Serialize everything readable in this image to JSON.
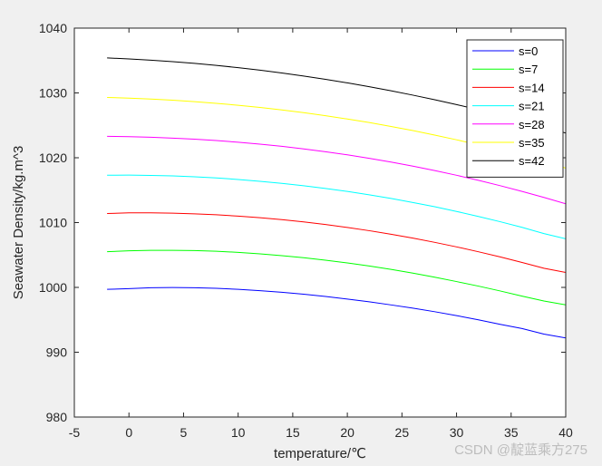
{
  "watermark": "CSDN @靛蓝乘方275",
  "chart_data": {
    "type": "line",
    "xlabel": "temperature/℃",
    "ylabel": "Seawater Density/kg.m^3",
    "xlim": [
      -5,
      40
    ],
    "ylim": [
      980,
      1040
    ],
    "xticks": [
      -5,
      0,
      5,
      10,
      15,
      20,
      25,
      30,
      35,
      40
    ],
    "yticks": [
      980,
      990,
      1000,
      1010,
      1020,
      1030,
      1040
    ],
    "grid": false,
    "legend_position": "top-right",
    "x": [
      -2,
      0,
      2,
      4,
      6,
      8,
      10,
      12,
      14,
      16,
      18,
      20,
      22,
      24,
      26,
      28,
      30,
      32,
      34,
      36,
      38,
      40
    ],
    "series": [
      {
        "name": "s=0",
        "color": "#0000ff",
        "values": [
          999.7,
          999.8,
          999.95,
          999.98,
          999.95,
          999.86,
          999.7,
          999.5,
          999.25,
          998.95,
          998.6,
          998.2,
          997.78,
          997.3,
          996.8,
          996.25,
          995.65,
          995.0,
          994.3,
          993.65,
          992.8,
          992.2
        ]
      },
      {
        "name": "s=7",
        "color": "#00ff00",
        "values": [
          1005.5,
          1005.65,
          1005.72,
          1005.72,
          1005.68,
          1005.58,
          1005.4,
          1005.18,
          1004.9,
          1004.58,
          1004.2,
          1003.78,
          1003.3,
          1002.78,
          1002.2,
          1001.58,
          1000.9,
          1000.2,
          999.45,
          998.65,
          997.9,
          997.3
        ]
      },
      {
        "name": "s=14",
        "color": "#ff0000",
        "values": [
          1011.4,
          1011.5,
          1011.5,
          1011.45,
          1011.35,
          1011.2,
          1011.0,
          1010.75,
          1010.45,
          1010.1,
          1009.7,
          1009.25,
          1008.75,
          1008.2,
          1007.6,
          1006.95,
          1006.25,
          1005.5,
          1004.7,
          1003.85,
          1002.95,
          1002.3
        ]
      },
      {
        "name": "s=21",
        "color": "#00ffff",
        "values": [
          1017.3,
          1017.32,
          1017.28,
          1017.2,
          1017.06,
          1016.88,
          1016.65,
          1016.37,
          1016.05,
          1015.68,
          1015.26,
          1014.8,
          1014.28,
          1013.72,
          1013.1,
          1012.44,
          1011.72,
          1010.95,
          1010.13,
          1009.26,
          1008.3,
          1007.5
        ]
      },
      {
        "name": "s=28",
        "color": "#ff00ff",
        "values": [
          1023.3,
          1023.25,
          1023.16,
          1023.03,
          1022.86,
          1022.65,
          1022.4,
          1022.1,
          1021.76,
          1021.37,
          1020.93,
          1020.45,
          1019.92,
          1019.34,
          1018.71,
          1018.03,
          1017.3,
          1016.52,
          1015.69,
          1014.81,
          1013.88,
          1012.9
        ]
      },
      {
        "name": "s=35",
        "color": "#ffff00",
        "values": [
          1029.3,
          1029.2,
          1029.06,
          1028.88,
          1028.66,
          1028.4,
          1028.1,
          1027.76,
          1027.38,
          1026.96,
          1026.49,
          1025.98,
          1025.43,
          1024.83,
          1024.19,
          1023.5,
          1022.77,
          1021.99,
          1021.17,
          1020.3,
          1019.38,
          1018.4
        ]
      },
      {
        "name": "s=42",
        "color": "#000000",
        "values": [
          1035.4,
          1035.25,
          1035.06,
          1034.83,
          1034.56,
          1034.25,
          1033.9,
          1033.51,
          1033.08,
          1032.61,
          1032.1,
          1031.55,
          1030.96,
          1030.33,
          1029.66,
          1028.95,
          1028.2,
          1027.41,
          1026.58,
          1025.71,
          1024.8,
          1023.8
        ]
      }
    ]
  }
}
